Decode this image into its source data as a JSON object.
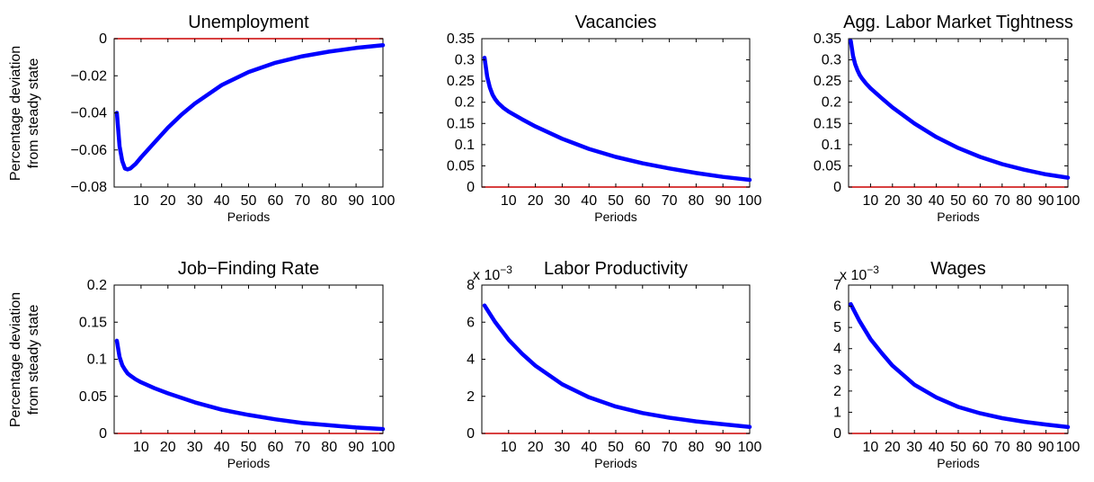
{
  "figure": {
    "ylabel_line1": "Percentage deviation",
    "ylabel_line2": "from steady state"
  },
  "colors": {
    "series": "#0000ff",
    "zero_line": "#cc0000",
    "axes": "#000000"
  },
  "chart_data": [
    {
      "type": "line",
      "title": "Unemployment",
      "xlabel": "Periods",
      "xlim": [
        0,
        100
      ],
      "ylim": [
        -0.08,
        0
      ],
      "xticks": [
        10,
        20,
        30,
        40,
        50,
        60,
        70,
        80,
        90,
        100
      ],
      "yticks": [
        0,
        -0.02,
        -0.04,
        -0.06,
        -0.08
      ],
      "ytick_labels": [
        "0",
        "−0.02",
        "−0.04",
        "−0.06",
        "−0.08"
      ],
      "exponent": "",
      "grid": false,
      "zero_line": true,
      "series": [
        {
          "x": [
            1,
            2,
            3,
            4,
            5,
            6,
            8,
            10,
            15,
            20,
            25,
            30,
            40,
            50,
            60,
            70,
            80,
            90,
            100
          ],
          "y": [
            -0.04,
            -0.058,
            -0.066,
            -0.07,
            -0.0705,
            -0.07,
            -0.0675,
            -0.064,
            -0.056,
            -0.048,
            -0.041,
            -0.035,
            -0.025,
            -0.018,
            -0.013,
            -0.0095,
            -0.007,
            -0.005,
            -0.0035
          ]
        }
      ]
    },
    {
      "type": "line",
      "title": "Vacancies",
      "xlabel": "Periods",
      "xlim": [
        0,
        100
      ],
      "ylim": [
        0,
        0.35
      ],
      "xticks": [
        10,
        20,
        30,
        40,
        50,
        60,
        70,
        80,
        90,
        100
      ],
      "yticks": [
        0,
        0.05,
        0.1,
        0.15,
        0.2,
        0.25,
        0.3,
        0.35
      ],
      "ytick_labels": [
        "0",
        "0.05",
        "0.1",
        "0.15",
        "0.2",
        "0.25",
        "0.3",
        "0.35"
      ],
      "exponent": "",
      "grid": false,
      "zero_line": true,
      "series": [
        {
          "x": [
            1,
            2,
            3,
            4,
            5,
            6,
            8,
            10,
            15,
            20,
            30,
            40,
            50,
            60,
            70,
            80,
            90,
            100
          ],
          "y": [
            0.305,
            0.26,
            0.235,
            0.218,
            0.207,
            0.199,
            0.187,
            0.178,
            0.16,
            0.143,
            0.114,
            0.09,
            0.071,
            0.056,
            0.044,
            0.033,
            0.024,
            0.017
          ]
        }
      ]
    },
    {
      "type": "line",
      "title": "Agg. Labor Market Tightness",
      "xlabel": "Periods",
      "xlim": [
        0,
        100
      ],
      "ylim": [
        0,
        0.35
      ],
      "xticks": [
        10,
        20,
        30,
        40,
        50,
        60,
        70,
        80,
        90,
        100
      ],
      "yticks": [
        0,
        0.05,
        0.1,
        0.15,
        0.2,
        0.25,
        0.3,
        0.35
      ],
      "ytick_labels": [
        "0",
        "0.05",
        "0.1",
        "0.15",
        "0.2",
        "0.25",
        "0.3",
        "0.35"
      ],
      "exponent": "",
      "grid": false,
      "zero_line": true,
      "series": [
        {
          "x": [
            1,
            2,
            3,
            4,
            5,
            6,
            8,
            10,
            15,
            20,
            30,
            40,
            50,
            60,
            70,
            80,
            90,
            100
          ],
          "y": [
            0.345,
            0.31,
            0.29,
            0.276,
            0.265,
            0.257,
            0.244,
            0.233,
            0.21,
            0.188,
            0.15,
            0.118,
            0.092,
            0.071,
            0.054,
            0.041,
            0.03,
            0.022
          ]
        }
      ]
    },
    {
      "type": "line",
      "title": "Job−Finding Rate",
      "xlabel": "Periods",
      "xlim": [
        0,
        100
      ],
      "ylim": [
        0,
        0.2
      ],
      "xticks": [
        10,
        20,
        30,
        40,
        50,
        60,
        70,
        80,
        90,
        100
      ],
      "yticks": [
        0,
        0.05,
        0.1,
        0.15,
        0.2
      ],
      "ytick_labels": [
        "0",
        "0.05",
        "0.1",
        "0.15",
        "0.2"
      ],
      "exponent": "",
      "grid": false,
      "zero_line": true,
      "series": [
        {
          "x": [
            1,
            2,
            3,
            4,
            5,
            6,
            8,
            10,
            15,
            20,
            30,
            40,
            50,
            60,
            70,
            80,
            90,
            100
          ],
          "y": [
            0.125,
            0.103,
            0.092,
            0.086,
            0.081,
            0.078,
            0.073,
            0.069,
            0.061,
            0.054,
            0.042,
            0.032,
            0.025,
            0.019,
            0.014,
            0.011,
            0.008,
            0.006
          ]
        }
      ]
    },
    {
      "type": "line",
      "title": "Labor Productivity",
      "xlabel": "Periods",
      "xlim": [
        0,
        100
      ],
      "ylim": [
        0,
        8
      ],
      "xticks": [
        10,
        20,
        30,
        40,
        50,
        60,
        70,
        80,
        90,
        100
      ],
      "yticks": [
        0,
        2,
        4,
        6,
        8
      ],
      "ytick_labels": [
        "0",
        "2",
        "4",
        "6",
        "8"
      ],
      "exponent": "−3",
      "grid": false,
      "zero_line": true,
      "series": [
        {
          "x": [
            1,
            5,
            10,
            15,
            20,
            30,
            40,
            50,
            60,
            70,
            80,
            90,
            100
          ],
          "y": [
            6.9,
            6.0,
            5.05,
            4.3,
            3.65,
            2.65,
            1.95,
            1.45,
            1.1,
            0.85,
            0.65,
            0.5,
            0.35
          ]
        }
      ]
    },
    {
      "type": "line",
      "title": "Wages",
      "xlabel": "Periods",
      "xlim": [
        0,
        100
      ],
      "ylim": [
        0,
        7
      ],
      "xticks": [
        10,
        20,
        30,
        40,
        50,
        60,
        70,
        80,
        90,
        100
      ],
      "yticks": [
        0,
        1,
        2,
        3,
        4,
        5,
        6,
        7
      ],
      "ytick_labels": [
        "0",
        "1",
        "2",
        "3",
        "4",
        "5",
        "6",
        "7"
      ],
      "exponent": "−3",
      "grid": false,
      "zero_line": true,
      "series": [
        {
          "x": [
            1,
            5,
            10,
            15,
            20,
            30,
            40,
            50,
            60,
            70,
            80,
            90,
            100
          ],
          "y": [
            6.1,
            5.3,
            4.45,
            3.8,
            3.2,
            2.3,
            1.7,
            1.25,
            0.95,
            0.72,
            0.55,
            0.42,
            0.3
          ]
        }
      ]
    }
  ]
}
